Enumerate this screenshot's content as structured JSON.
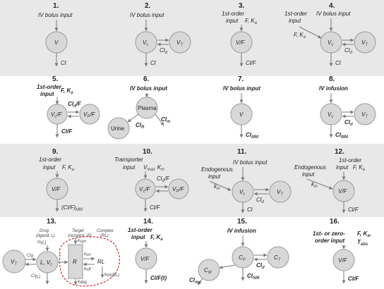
{
  "panels": [
    {
      "num": "1.",
      "input": "IV bolus input",
      "central": "V",
      "out": "Cl"
    },
    {
      "num": "2.",
      "input": "IV bolus input",
      "central": "V",
      "central_sub": "c",
      "periph": "V",
      "periph_sub": "T",
      "q": "Cl",
      "q_sub": "d",
      "out": "Cl"
    },
    {
      "num": "3.",
      "input_a": "1st-order",
      "input_b": "input",
      "params": "F, K",
      "params_sub": "a",
      "central": "V/F",
      "out": "Cl/F"
    },
    {
      "num": "4.",
      "input_a": "1st-order",
      "input_b": "input",
      "input2": "IV bolus input",
      "params": "F, K",
      "params_sub": "a",
      "central": "V",
      "central_sub": "c",
      "periph": "V",
      "periph_sub": "T",
      "q": "Cl",
      "q_sub": "d",
      "out": "Cl"
    },
    {
      "num": "5.",
      "input_a": "1st-order",
      "input_b": "input",
      "params": "F, K",
      "params_sub": "a",
      "central": "V",
      "central_sub": "c",
      "central_suffix": "/F",
      "periph": "V",
      "periph_sub": "P",
      "periph_suffix": "/F",
      "q": "Cl",
      "q_sub": "d",
      "q_suffix": "/F",
      "out": "Cl/F"
    },
    {
      "num": "6.",
      "input": "IV bolus input",
      "central": "Plasma",
      "periph": "Urine",
      "q": "Cl",
      "q_sub": "R",
      "out": "Cl",
      "out_sub": "m"
    },
    {
      "num": "7.",
      "input": "IV bolus input",
      "central": "V",
      "out": "Cl",
      "out_sub": "MM"
    },
    {
      "num": "8.",
      "input": "IV infusion",
      "central": "V",
      "central_sub": "c",
      "periph": "V",
      "periph_sub": "T",
      "q": "Cl",
      "q_sub": "d",
      "out": "Cl",
      "out_sub": "MM"
    },
    {
      "num": "9.",
      "input_a": "1st-order",
      "input_b": "input",
      "params": "F, K",
      "params_sub": "a",
      "central": "V/F",
      "out": "(Cl/F)",
      "out_sub": "MM"
    },
    {
      "num": "10.",
      "input_a": "Transporter",
      "input_b": "input",
      "params": "V",
      "params_sub": "max",
      "params2": "K",
      "params2_sub": "m",
      "central": "V",
      "central_sub": "c",
      "central_suffix": "/F",
      "periph": "V",
      "periph_sub": "P",
      "periph_suffix": "/F",
      "q": "Cl",
      "q_sub": "d",
      "q_suffix": "/F",
      "out": "Cl/F"
    },
    {
      "num": "11.",
      "input_a": "Endogenous",
      "input_b": "input",
      "input2": "IV bolus input",
      "kin": "k",
      "kin_sub": "in",
      "central": "V",
      "central_sub": "c",
      "periph": "V",
      "periph_sub": "T",
      "q": "Cl",
      "q_sub": "d",
      "out": "Cl"
    },
    {
      "num": "12.",
      "input_a": "Endogenous",
      "input_b": "input",
      "input2_a": "1st-order",
      "input2_b": "input",
      "params": "F, K",
      "params_sub": "a",
      "kin": "k",
      "kin_sub": "in",
      "central": "V/F",
      "out": "Cl/F"
    },
    {
      "num": "13.",
      "drug_a": "Drug",
      "drug_b": "(ligand, L)",
      "target_a": "Target",
      "target_b": "(receptor, R)",
      "complex_a": "Complex",
      "complex_b": "(RL)",
      "in_l": "In",
      "in_l_sub": "(L)",
      "periph": "V",
      "periph_sub": "T",
      "central": "L, V",
      "central_sub": "c",
      "r": "R",
      "rl": "RL",
      "kon": "k",
      "kon_sub": "on",
      "koff": "k",
      "koff_sub": "off",
      "ksyn": "k",
      "ksyn_sub": "syn",
      "kdeg": "k",
      "kdeg_sub": "deg",
      "kint": "k",
      "kint_sub": "int(RL)",
      "q": "Cl",
      "q_sub": "d",
      "out": "Cl",
      "out_sub": "(L)"
    },
    {
      "num": "14.",
      "input_a": "1st-order",
      "input_b": "input",
      "params": "F, K",
      "params_sub": "a",
      "central": "V/F",
      "out": "Cl/F(t)"
    },
    {
      "num": "15.",
      "input": "IV infusion",
      "central": "C",
      "central_sub": "P",
      "periph": "C",
      "periph_sub": "T",
      "metab": "C",
      "metab_sub": "M",
      "q": "Cl",
      "q_sub": "d",
      "out": "Cl",
      "out_sub": "NM",
      "metab_out": "Cl",
      "metab_out_sub": "me"
    },
    {
      "num": "16.",
      "input_a": "1st- or zero-",
      "input_b": "order input",
      "params": "F, K",
      "params_sub": "a",
      "params_suffix": ",",
      "params2": "T",
      "params2_sub": "abs",
      "central": "V/F",
      "out": "Cl/F"
    }
  ]
}
